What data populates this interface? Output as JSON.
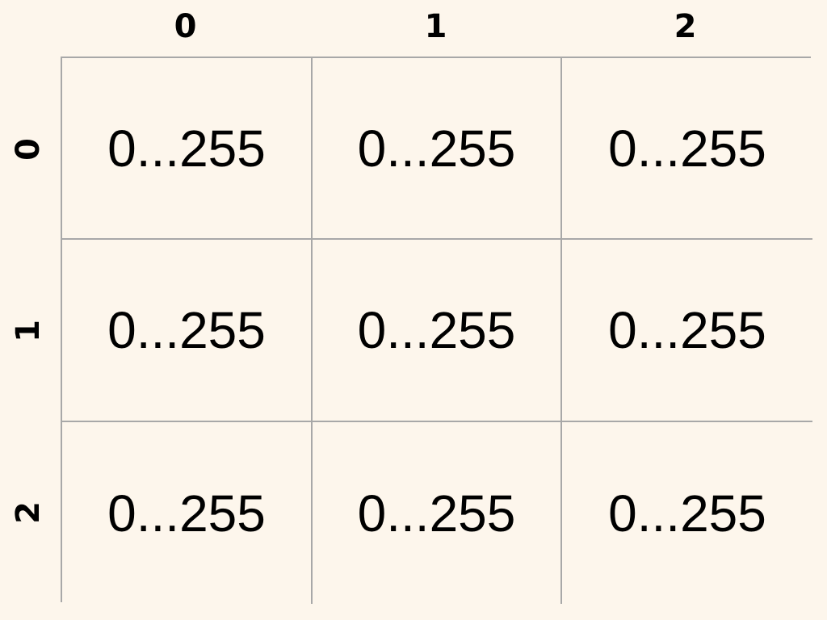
{
  "column_headers": [
    "0",
    "1",
    "2"
  ],
  "row_headers": [
    "0",
    "1",
    "2"
  ],
  "cells": [
    [
      "0...255",
      "0...255",
      "0...255"
    ],
    [
      "0...255",
      "0...255",
      "0...255"
    ],
    [
      "0...255",
      "0...255",
      "0...255"
    ]
  ],
  "colors": {
    "background": "#fdf6ec",
    "grid_line": "#a8a8a8",
    "text": "#000000"
  }
}
